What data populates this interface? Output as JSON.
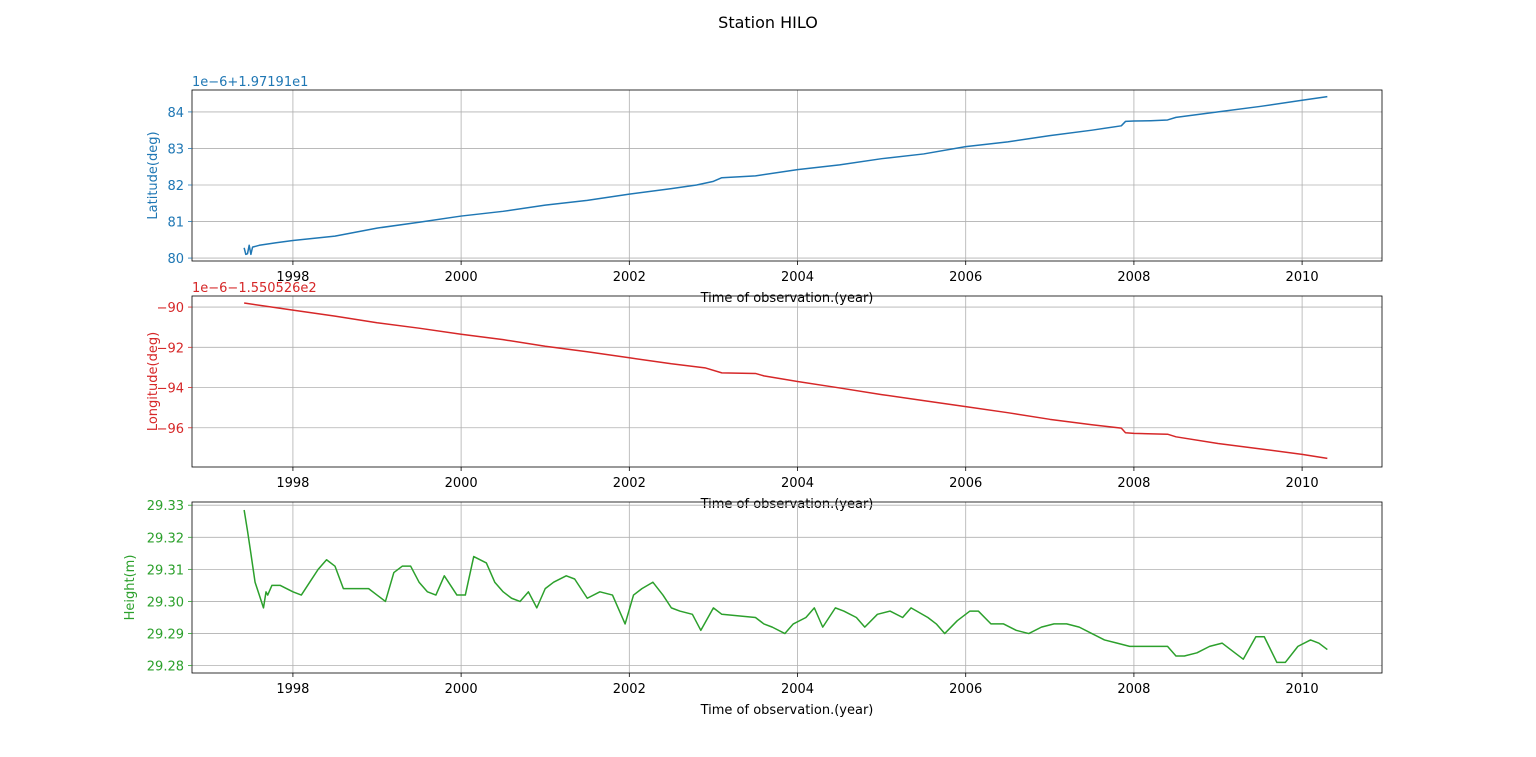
{
  "figure_title": "Station HILO",
  "colors": {
    "latitude": "#1f77b4",
    "longitude": "#d62728",
    "height": "#2ca02c",
    "grid": "#b0b0b0",
    "axis": "#000000"
  },
  "chart_data": [
    {
      "type": "line",
      "ylabel": "Latitude(deg)",
      "xlabel": "Time of observation.(year)",
      "offset_text": "1e−6+1.97191e1",
      "xlim": [
        1996.8,
        2010.95
      ],
      "ylim": [
        79.92,
        84.6
      ],
      "x_ticks": [
        1998,
        2000,
        2002,
        2004,
        2006,
        2008,
        2010
      ],
      "x_tick_labels": [
        "1998",
        "2000",
        "2002",
        "2004",
        "2006",
        "2008",
        "2010"
      ],
      "y_ticks": [
        80,
        81,
        82,
        83,
        84
      ],
      "y_tick_labels": [
        "80",
        "81",
        "82",
        "83",
        "84"
      ],
      "grid": true,
      "series": [
        {
          "x": [
            1997.42,
            1997.44,
            1997.46,
            1997.48,
            1997.5,
            1997.52,
            1997.6,
            1997.8,
            1998.0,
            1998.5,
            1999.0,
            1999.5,
            2000.0,
            2000.5,
            2001.0,
            2001.5,
            2002.0,
            2002.5,
            2002.8,
            2003.0,
            2003.1,
            2003.5,
            2004.0,
            2004.5,
            2005.0,
            2005.5,
            2006.0,
            2006.5,
            2007.0,
            2007.5,
            2007.85,
            2007.9,
            2008.0,
            2008.2,
            2008.4,
            2008.5,
            2009.0,
            2009.5,
            2010.0,
            2010.3
          ],
          "y": [
            80.28,
            80.1,
            80.12,
            80.35,
            80.1,
            80.3,
            80.35,
            80.42,
            80.48,
            80.6,
            80.82,
            80.98,
            81.15,
            81.28,
            81.45,
            81.58,
            81.75,
            81.9,
            82.0,
            82.1,
            82.2,
            82.25,
            82.42,
            82.55,
            82.72,
            82.85,
            83.05,
            83.18,
            83.35,
            83.5,
            83.62,
            83.74,
            83.75,
            83.76,
            83.78,
            83.85,
            84.0,
            84.15,
            84.32,
            84.42
          ]
        }
      ]
    },
    {
      "type": "line",
      "ylabel": "Longitude(deg)",
      "xlabel": "Time of observation.(year)",
      "offset_text": "1e−6−1.550526e2",
      "xlim": [
        1996.8,
        2010.95
      ],
      "ylim": [
        -97.95,
        -89.45
      ],
      "x_ticks": [
        1998,
        2000,
        2002,
        2004,
        2006,
        2008,
        2010
      ],
      "x_tick_labels": [
        "1998",
        "2000",
        "2002",
        "2004",
        "2006",
        "2008",
        "2010"
      ],
      "y_ticks": [
        -90,
        -92,
        -94,
        -96
      ],
      "y_tick_labels": [
        "−90",
        "−92",
        "−94",
        "−96"
      ],
      "grid": true,
      "series": [
        {
          "x": [
            1997.42,
            1998.0,
            1998.5,
            1999.0,
            1999.5,
            2000.0,
            2000.5,
            2001.0,
            2001.5,
            2002.0,
            2002.5,
            2002.9,
            2003.1,
            2003.5,
            2003.6,
            2004.0,
            2004.5,
            2005.0,
            2005.5,
            2006.0,
            2006.5,
            2007.0,
            2007.5,
            2007.85,
            2007.9,
            2008.0,
            2008.4,
            2008.5,
            2009.0,
            2009.5,
            2010.0,
            2010.3
          ],
          "y": [
            -89.8,
            -90.15,
            -90.45,
            -90.78,
            -91.05,
            -91.35,
            -91.62,
            -91.95,
            -92.22,
            -92.52,
            -92.82,
            -93.02,
            -93.27,
            -93.3,
            -93.42,
            -93.7,
            -94.02,
            -94.35,
            -94.65,
            -94.95,
            -95.25,
            -95.58,
            -95.85,
            -96.02,
            -96.25,
            -96.28,
            -96.32,
            -96.45,
            -96.78,
            -97.05,
            -97.32,
            -97.52
          ]
        }
      ]
    },
    {
      "type": "line",
      "ylabel": "Height(m)",
      "xlabel": "Time of observation.(year)",
      "offset_text": "",
      "xlim": [
        1996.8,
        2010.95
      ],
      "ylim": [
        29.2777,
        29.331
      ],
      "x_ticks": [
        1998,
        2000,
        2002,
        2004,
        2006,
        2008,
        2010
      ],
      "x_tick_labels": [
        "1998",
        "2000",
        "2002",
        "2004",
        "2006",
        "2008",
        "2010"
      ],
      "y_ticks": [
        29.28,
        29.29,
        29.3,
        29.31,
        29.32,
        29.33
      ],
      "y_tick_labels": [
        "29.28",
        "29.29",
        "29.30",
        "29.31",
        "29.32",
        "29.33"
      ],
      "grid": true,
      "series": [
        {
          "x": [
            1997.42,
            1997.46,
            1997.5,
            1997.55,
            1997.6,
            1997.65,
            1997.68,
            1997.7,
            1997.75,
            1997.85,
            1998.0,
            1998.1,
            1998.2,
            1998.3,
            1998.4,
            1998.5,
            1998.6,
            1998.75,
            1998.9,
            1999.0,
            1999.1,
            1999.2,
            1999.3,
            1999.4,
            1999.5,
            1999.6,
            1999.7,
            1999.8,
            1999.95,
            2000.05,
            2000.15,
            2000.3,
            2000.4,
            2000.5,
            2000.6,
            2000.7,
            2000.8,
            2000.9,
            2001.0,
            2001.1,
            2001.25,
            2001.35,
            2001.5,
            2001.65,
            2001.8,
            2001.95,
            2002.05,
            2002.15,
            2002.28,
            2002.4,
            2002.5,
            2002.6,
            2002.75,
            2002.85,
            2003.0,
            2003.1,
            2003.5,
            2003.6,
            2003.7,
            2003.85,
            2003.95,
            2004.1,
            2004.2,
            2004.3,
            2004.45,
            2004.55,
            2004.7,
            2004.8,
            2004.95,
            2005.1,
            2005.25,
            2005.35,
            2005.55,
            2005.65,
            2005.75,
            2005.9,
            2006.05,
            2006.15,
            2006.3,
            2006.45,
            2006.6,
            2006.75,
            2006.9,
            2007.05,
            2007.2,
            2007.35,
            2007.5,
            2007.65,
            2007.8,
            2007.95,
            2008.2,
            2008.4,
            2008.5,
            2008.6,
            2008.75,
            2008.9,
            2009.05,
            2009.2,
            2009.3,
            2009.45,
            2009.55,
            2009.7,
            2009.8,
            2009.95,
            2010.1,
            2010.2,
            2010.3
          ],
          "y": [
            29.3285,
            29.322,
            29.315,
            29.306,
            29.302,
            29.298,
            29.303,
            29.302,
            29.305,
            29.305,
            29.303,
            29.302,
            29.306,
            29.31,
            29.313,
            29.311,
            29.304,
            29.304,
            29.304,
            29.302,
            29.3,
            29.309,
            29.311,
            29.311,
            29.306,
            29.303,
            29.302,
            29.308,
            29.302,
            29.302,
            29.314,
            29.312,
            29.306,
            29.303,
            29.301,
            29.3,
            29.303,
            29.298,
            29.304,
            29.306,
            29.308,
            29.307,
            29.301,
            29.303,
            29.302,
            29.293,
            29.302,
            29.304,
            29.306,
            29.302,
            29.298,
            29.297,
            29.296,
            29.291,
            29.298,
            29.296,
            29.295,
            29.293,
            29.292,
            29.29,
            29.293,
            29.295,
            29.298,
            29.292,
            29.298,
            29.297,
            29.295,
            29.292,
            29.296,
            29.297,
            29.295,
            29.298,
            29.295,
            29.293,
            29.29,
            29.294,
            29.297,
            29.297,
            29.293,
            29.293,
            29.291,
            29.29,
            29.292,
            29.293,
            29.293,
            29.292,
            29.29,
            29.288,
            29.287,
            29.286,
            29.286,
            29.286,
            29.283,
            29.283,
            29.284,
            29.286,
            29.287,
            29.284,
            29.282,
            29.289,
            29.289,
            29.281,
            29.281,
            29.286,
            29.288,
            29.287,
            29.285
          ]
        }
      ]
    }
  ]
}
